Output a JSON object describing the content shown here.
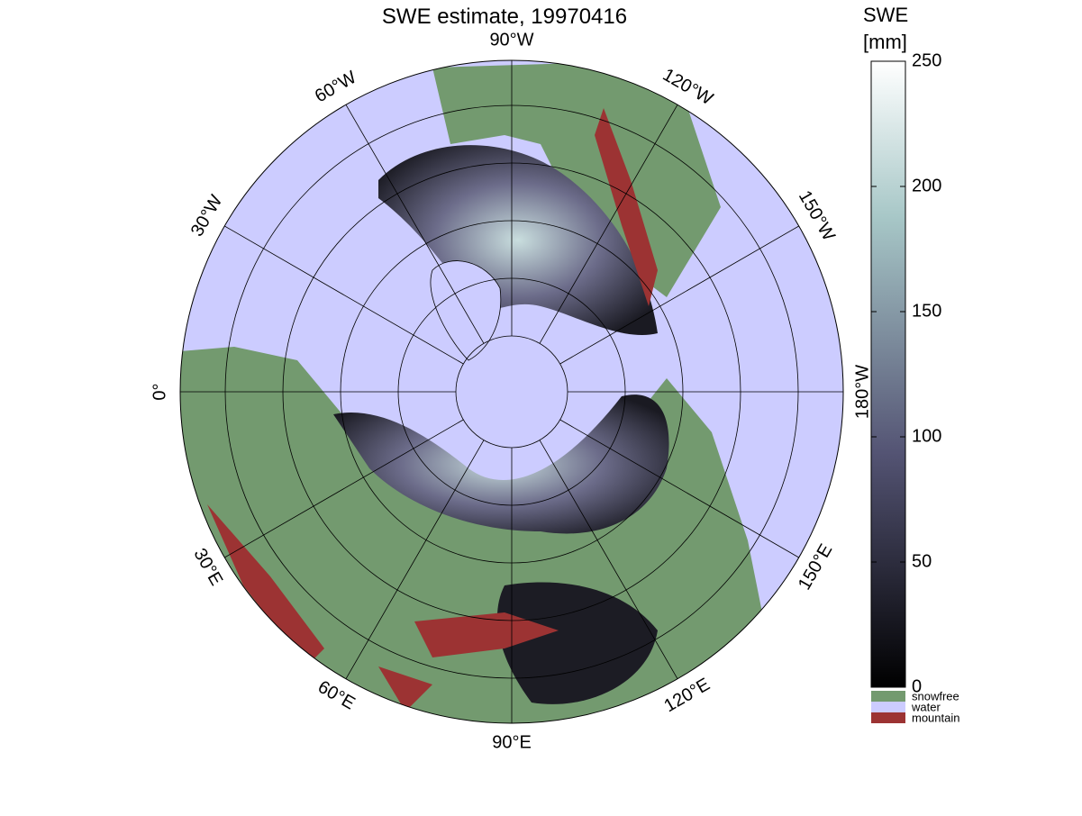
{
  "title": "SWE estimate, 19970416",
  "map": {
    "longitude_labels": [
      "90°W",
      "120°W",
      "150°W",
      "180°W",
      "150°E",
      "120°E",
      "90°E",
      "60°E",
      "30°E",
      "0°",
      "30°W",
      "60°W"
    ]
  },
  "colorbar": {
    "label_lines": [
      "SWE",
      "[mm]"
    ],
    "lim": [
      0,
      250
    ],
    "ticks": [
      0,
      50,
      100,
      150,
      200,
      250
    ],
    "categories": [
      {
        "name": "snowfree",
        "color": "#739a6f"
      },
      {
        "name": "water",
        "color": "#ccccff"
      },
      {
        "name": "mountain",
        "color": "#9c3333"
      }
    ]
  }
}
